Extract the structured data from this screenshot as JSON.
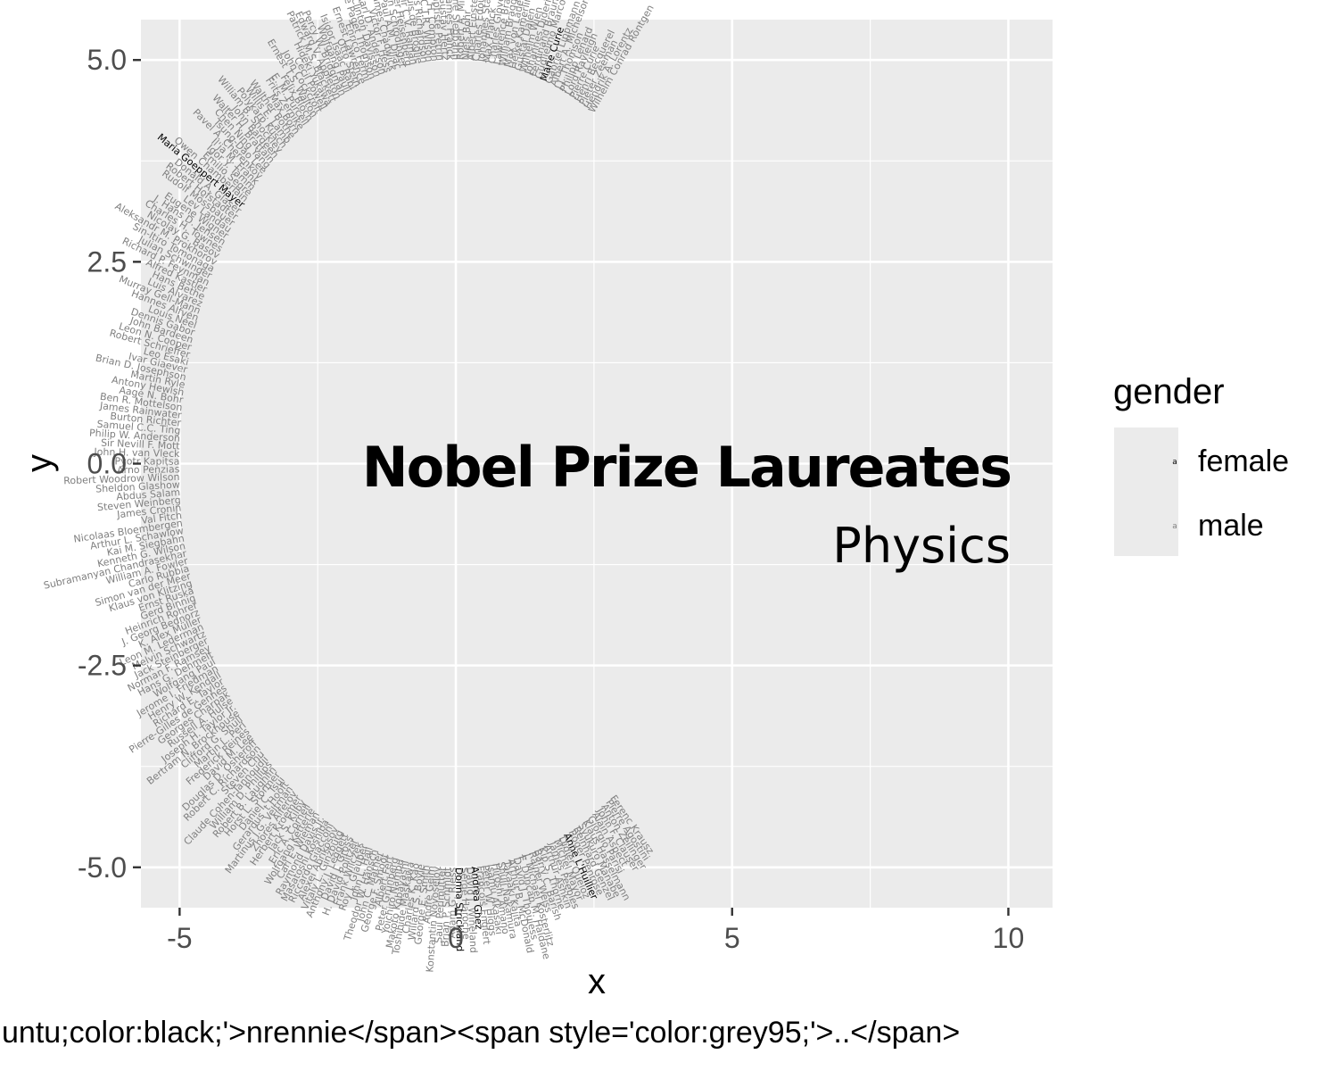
{
  "chart_data": {
    "type": "scatter",
    "title": "Nobel Prize Laureates",
    "subtitle": "Physics",
    "xlabel": "x",
    "ylabel": "y",
    "xlim": [
      -5.7,
      10.8
    ],
    "ylim": [
      -5.5,
      5.5
    ],
    "x_ticks": [
      "-5",
      "0",
      "5",
      "10"
    ],
    "x_tick_values": [
      -5,
      0,
      5,
      10
    ],
    "y_ticks": [
      "5.0",
      "2.5",
      "0.0",
      "-2.5",
      "-5.0"
    ],
    "y_tick_values": [
      5,
      2.5,
      0,
      -2.5,
      -5
    ],
    "grid": true,
    "caption": "untu;color:black;'>nrennie</span><span style='color:grey95;'>..</span>",
    "legend": {
      "title": "gender",
      "position": "right",
      "items": [
        {
          "label": "female",
          "color": "#000000",
          "glyph": "a"
        },
        {
          "label": "male",
          "color": "#7f7f7f",
          "glyph": "a"
        }
      ]
    },
    "arc": {
      "start_angle_deg": 60,
      "end_angle_deg": 305,
      "inner_radius": 5
    },
    "series": [
      {
        "name": "male",
        "color": "#7f7f7f",
        "labels": [
          "Wilhelm Conrad Röntgen",
          "Hendrik A. Lorentz",
          "Pieter Zeeman",
          "Henri Becquerel",
          "Pierre Curie",
          "Lord Rayleigh",
          "Philipp Lenard",
          "J.J. Thomson",
          "Albert A. Michelson",
          "Gabriel Lippmann",
          "Guglielmo Marconi",
          "Ferdinand Braun",
          "Johannes Diderik van der Waals",
          "Wilhelm Wien",
          "Gustaf Dalén",
          "Heike Kamerlingh Onnes",
          "Max von Laue",
          "William Bragg",
          "Lawrence Bragg",
          "Charles Glover Barkla",
          "Max Planck",
          "Johannes Stark",
          "Charles Edouard Guillaume",
          "Albert Einstein",
          "Niels Bohr",
          "Robert A. Millikan",
          "Manne Siegbahn",
          "James Franck",
          "Gustav Hertz",
          "Jean Baptiste Perrin",
          "Arthur H. Compton",
          "C.T.R. Wilson",
          "Owen Willans Richardson",
          "Louis de Broglie",
          "Sir C.V. Raman",
          "Werner Heisenberg",
          "Erwin Schrödinger",
          "Paul A.M. Dirac",
          "James Chadwick",
          "Victor F. Hess",
          "Carl D. Anderson",
          "Clinton Davisson",
          "George Paget Thomson",
          "Enrico Fermi",
          "Ernest Lawrence",
          "Otto Stern",
          "Isidor Isaac Rabi",
          "Wolfgang Pauli",
          "Percy W. Bridgman",
          "Edward V. Appleton",
          "Patrick M.S. Blackett",
          "Hideki Yukawa",
          "Cecil Powell",
          "John Cockcroft",
          "Ernest T.S. Walton",
          "Felix Bloch",
          "E. M. Purcell",
          "Frits Zernike",
          "Max Born",
          "Walther Bothe",
          "Willis E. Lamb",
          "Polykarp Kusch",
          "William B. Shockley",
          "John Bardeen",
          "Walter H. Brattain",
          "Chen Ning Yang",
          "Tsung-Dao Lee",
          "Pavel A. Cherenkov",
          "Il'ja M. Frank",
          "Igor Y. Tamm",
          "Emilio Segrè",
          "Owen Chamberlain",
          "Donald A. Glaser",
          "Robert Hofstadter",
          "Rudolf Mössbauer",
          "Lev Landau",
          "Eugene Wigner",
          "J. Hans D. Jensen",
          "Charles H. Townes",
          "Nicolay G. Basov",
          "Aleksandr M. Prokhorov",
          "Sin-Itiro Tomonaga",
          "Julian Schwinger",
          "Richard P. Feynman",
          "Alfred Kastler",
          "Hans Bethe",
          "Luis Alvarez",
          "Murray Gell-Mann",
          "Hannes Alfvén",
          "Louis Néel",
          "Dennis Gabor",
          "John Bardeen",
          "Leon N. Cooper",
          "Robert Schrieffer",
          "Leo Esaki",
          "Ivar Giaever",
          "Brian D. Josephson",
          "Martin Ryle",
          "Antony Hewish",
          "Aage N. Bohr",
          "Ben R. Mottelson",
          "James Rainwater",
          "Burton Richter",
          "Samuel C.C. Ting",
          "Philip W. Anderson",
          "Sir Nevill F. Mott",
          "John H. van Vleck",
          "Pyotr Kapitsa",
          "Arno Penzias",
          "Robert Woodrow Wilson",
          "Sheldon Glashow",
          "Abdus Salam",
          "Steven Weinberg",
          "James Cronin",
          "Val Fitch",
          "Nicolaas Bloembergen",
          "Arthur L. Schawlow",
          "Kai M. Siegbahn",
          "Kenneth G. Wilson",
          "Subramanyan Chandrasekhar",
          "William A. Fowler",
          "Carlo Rubbia",
          "Simon van der Meer",
          "Klaus von Klitzing",
          "Ernst Ruska",
          "Gerd Binnig",
          "Heinrich Rohrer",
          "J. Georg Bednorz",
          "K. Alex Müller",
          "Leon M. Lederman",
          "Melvin Schwartz",
          "Jack Steinberger",
          "Norman F. Ramsey",
          "Hans G. Dehmelt",
          "Wolfgang Paul",
          "Jerome I. Friedman",
          "Henry W. Kendall",
          "Richard E. Taylor",
          "Pierre-Gilles de Gennes",
          "Georges Charpak",
          "Russell A. Hulse",
          "Joseph H. Taylor Jr.",
          "Bertram N. Brockhouse",
          "Clifford G. Shull",
          "Martin L. Perl",
          "Frederick Reines",
          "David M. Lee",
          "Douglas D. Osheroff",
          "Robert C. Richardson",
          "Steven Chu",
          "Claude Cohen-Tannoudji",
          "William D. Phillips",
          "Robert B. Laughlin",
          "Horst L. Störmer",
          "Daniel C. Tsui",
          "Gerardus 't Hooft",
          "Martinus J.G. Veltman",
          "Zhores Alferov",
          "Herbert Kroemer",
          "Jack S. Kilby",
          "Eric A. Cornell",
          "Wolfgang Ketterle",
          "Carl E. Wieman",
          "Raymond Davis Jr.",
          "Masatoshi Koshiba",
          "Riccardo Giacconi",
          "Alexei Abrikosov",
          "Vitaly L. Ginzburg",
          "Anthony J. Leggett",
          "David J. Gross",
          "H. David Politzer",
          "Frank Wilczek",
          "Roy J. Glauber",
          "John L. Hall",
          "Theodor W. Hänsch",
          "John C. Mather",
          "George F. Smoot",
          "Albert Fert",
          "Peter Grünberg",
          "Yoichiro Nambu",
          "Makoto Kobayashi",
          "Toshihide Maskawa",
          "Charles K. Kao",
          "Willard S. Boyle",
          "George E. Smith",
          "Andre Geim",
          "Konstantin Novoselov",
          "Saul Perlmutter",
          "Brian P. Schmidt",
          "Adam G. Riess",
          "Serge Haroche",
          "David J. Wineland",
          "François Englert",
          "Peter W. Higgs",
          "Isamu Akasaki",
          "Hiroshi Amano",
          "Shuji Nakamura",
          "Takaaki Kajita",
          "Arthur B. McDonald",
          "David J. Thouless",
          "F. Duncan M. Haldane",
          "J. Michael Kosterlitz",
          "Rainer Weiss",
          "Barry C. Barish",
          "Kip S. Thorne",
          "Arthur Ashkin",
          "James Peebles",
          "Michel Mayor",
          "Didier Queloz",
          "Roger Penrose",
          "Reinhard Genzel",
          "Syukuro Manabe",
          "Klaus Hasselmann",
          "Giorgio Parisi",
          "Alain Aspect",
          "John F. Clauser",
          "Anton Zeilinger",
          "Pierre Agostini",
          "Ferenc Krausz"
        ]
      },
      {
        "name": "female",
        "color": "#000000",
        "labels": [
          "Marie Curie",
          "Maria Goeppert Mayer",
          "Donna Strickland",
          "Andrea Ghez",
          "Anne L'Huillier"
        ]
      }
    ]
  }
}
